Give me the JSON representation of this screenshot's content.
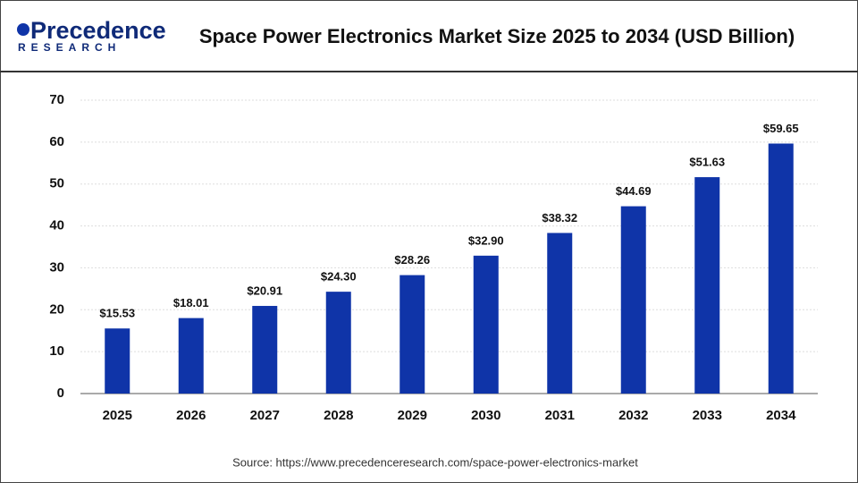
{
  "logo": {
    "name": "Precedence",
    "tagline": "RESEARCH"
  },
  "chart_data": {
    "type": "bar",
    "title": "Space Power Electronics Market Size 2025 to 2034 (USD Billion)",
    "source": "Source: https://www.precedenceresearch.com/space-power-electronics-market",
    "categories": [
      "2025",
      "2026",
      "2027",
      "2028",
      "2029",
      "2030",
      "2031",
      "2032",
      "2033",
      "2034"
    ],
    "values": [
      15.53,
      18.01,
      20.91,
      24.3,
      28.26,
      32.9,
      38.32,
      44.69,
      51.63,
      59.65
    ],
    "value_labels": [
      "$15.53",
      "$18.01",
      "$20.91",
      "$24.30",
      "$28.26",
      "$32.90",
      "$38.32",
      "$44.69",
      "$51.63",
      "$59.65"
    ],
    "color": "#0f34a8",
    "ylim": [
      0,
      70
    ],
    "yticks": [
      0,
      10,
      20,
      30,
      40,
      50,
      60,
      70
    ],
    "grid": true
  }
}
